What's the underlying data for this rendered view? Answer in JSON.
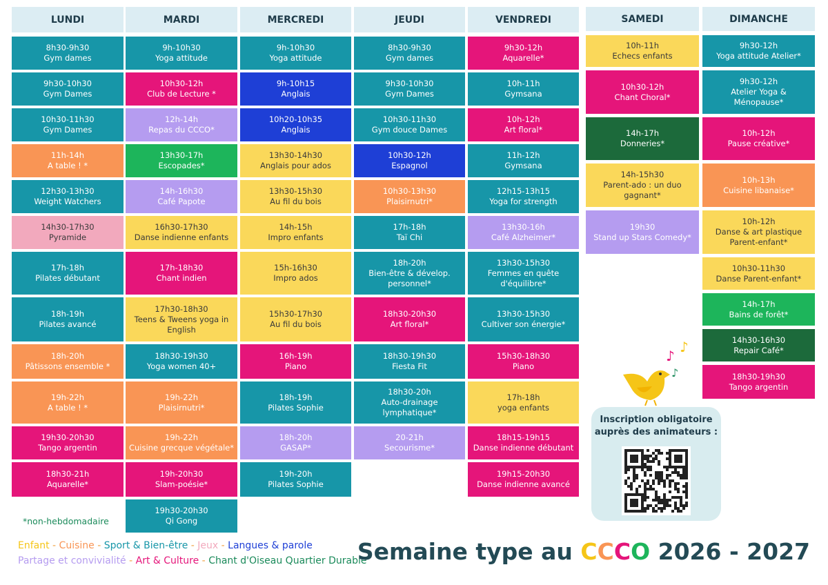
{
  "days": [
    {
      "name": "LUNDI",
      "events": [
        {
          "time": "8h30-9h30",
          "label": "Gym dames",
          "color": "#1796a8"
        },
        {
          "time": "9h30-10h30",
          "label": "Gym Dames",
          "color": "#1796a8"
        },
        {
          "time": "10h30-11h30",
          "label": "Gym Dames",
          "color": "#1796a8"
        },
        {
          "time": "11h-14h",
          "label": "A table ! *",
          "color": "#f99555"
        },
        {
          "time": "12h30-13h30",
          "label": "Weight Watchers",
          "color": "#1796a8"
        },
        {
          "time": "14h30-17h30",
          "label": "Pyramide",
          "color": "#f2a9bd"
        },
        {
          "time": "17h-18h",
          "label": "Pilates débutant",
          "color": "#1796a8"
        },
        {
          "time": "18h-19h",
          "label": "Pilates avancé",
          "color": "#1796a8"
        },
        {
          "time": "18h-20h",
          "label": "Pâtissons ensemble *",
          "color": "#f99555"
        },
        {
          "time": "19h-22h",
          "label": "A table ! *",
          "color": "#f99555"
        },
        {
          "time": "19h30-20h30",
          "label": "Tango argentin",
          "color": "#e5157a"
        },
        {
          "time": "18h30-21h",
          "label": "Aquarelle*",
          "color": "#e5157a"
        }
      ]
    },
    {
      "name": "MARDI",
      "events": [
        {
          "time": "9h-10h30",
          "label": "Yoga attitude",
          "color": "#1796a8"
        },
        {
          "time": "10h30-12h",
          "label": "Club de Lecture *",
          "color": "#e5157a"
        },
        {
          "time": "12h-14h",
          "label": "Repas du CCCO*",
          "color": "#b59cf0"
        },
        {
          "time": "13h30-17h",
          "label": "Escopades*",
          "color": "#1db55b"
        },
        {
          "time": "14h-16h30",
          "label": "Café Papote",
          "color": "#b59cf0"
        },
        {
          "time": "16h30-17h30",
          "label": "Danse indienne enfants",
          "color": "#fad85a"
        },
        {
          "time": "17h-18h30",
          "label": "Chant indien",
          "color": "#e5157a"
        },
        {
          "time": "17h30-18h30",
          "label": "Teens & Tweens yoga in English",
          "color": "#fad85a"
        },
        {
          "time": "18h30-19h30",
          "label": "Yoga women 40+",
          "color": "#1796a8"
        },
        {
          "time": "19h-22h",
          "label": "Plaisirnutri*",
          "color": "#f99555"
        },
        {
          "time": "19h-22h",
          "label": "Cuisine grecque végétale*",
          "color": "#f99555"
        },
        {
          "time": "19h-20h30",
          "label": "Slam-poésie*",
          "color": "#e5157a"
        },
        {
          "time": "19h30-20h30",
          "label": "Qi Gong",
          "color": "#1796a8"
        }
      ]
    },
    {
      "name": "MERCREDI",
      "events": [
        {
          "time": "9h-10h30",
          "label": "Yoga attitude",
          "color": "#1796a8"
        },
        {
          "time": "9h-10h15",
          "label": "Anglais",
          "color": "#1e3fd6"
        },
        {
          "time": "10h20-10h35",
          "label": "Anglais",
          "color": "#1e3fd6"
        },
        {
          "time": "13h30-14h30",
          "label": "Anglais pour ados",
          "color": "#fad85a"
        },
        {
          "time": "13h30-15h30",
          "label": "Au fil du bois",
          "color": "#fad85a"
        },
        {
          "time": "14h-15h",
          "label": "Impro enfants",
          "color": "#fad85a"
        },
        {
          "time": "15h-16h30",
          "label": "Impro ados",
          "color": "#fad85a"
        },
        {
          "time": "15h30-17h30",
          "label": "Au fil du bois",
          "color": "#fad85a"
        },
        {
          "time": "16h-19h",
          "label": "Piano",
          "color": "#e5157a"
        },
        {
          "time": "18h-19h",
          "label": "Pilates Sophie",
          "color": "#1796a8"
        },
        {
          "time": "18h-20h",
          "label": "GASAP*",
          "color": "#b59cf0"
        },
        {
          "time": "19h-20h",
          "label": "Pilates Sophie",
          "color": "#1796a8"
        }
      ]
    },
    {
      "name": "JEUDI",
      "events": [
        {
          "time": "8h30-9h30",
          "label": "Gym dames",
          "color": "#1796a8"
        },
        {
          "time": "9h30-10h30",
          "label": "Gym Dames",
          "color": "#1796a8"
        },
        {
          "time": "10h30-11h30",
          "label": "Gym douce Dames",
          "color": "#1796a8"
        },
        {
          "time": "10h30-12h",
          "label": "Espagnol",
          "color": "#1e3fd6"
        },
        {
          "time": "10h30-13h30",
          "label": "Plaisirnutri*",
          "color": "#f99555"
        },
        {
          "time": "17h-18h",
          "label": "Taï Chi",
          "color": "#1796a8"
        },
        {
          "time": "18h-20h",
          "label": "Bien-être & dévelop. personnel*",
          "color": "#1796a8"
        },
        {
          "time": "18h30-20h30",
          "label": "Art floral*",
          "color": "#e5157a"
        },
        {
          "time": "18h30-19h30",
          "label": "Fiesta Fit",
          "color": "#1796a8"
        },
        {
          "time": "18h30-20h",
          "label": "Auto-drainage lymphatique*",
          "color": "#1796a8"
        },
        {
          "time": "20-21h",
          "label": "Secourisme*",
          "color": "#b59cf0"
        }
      ]
    },
    {
      "name": "VENDREDI",
      "events": [
        {
          "time": "9h30-12h",
          "label": "Aquarelle*",
          "color": "#e5157a"
        },
        {
          "time": "10h-11h",
          "label": "Gymsana",
          "color": "#1796a8"
        },
        {
          "time": "10h-12h",
          "label": "Art floral*",
          "color": "#e5157a"
        },
        {
          "time": "11h-12h",
          "label": "Gymsana",
          "color": "#1796a8"
        },
        {
          "time": "12h15-13h15",
          "label": "Yoga for strength",
          "color": "#1796a8"
        },
        {
          "time": "13h30-16h",
          "label": "Café Alzheimer*",
          "color": "#b59cf0"
        },
        {
          "time": "13h30-15h30",
          "label": "Femmes en quête d'équilibre*",
          "color": "#1796a8"
        },
        {
          "time": "13h30-15h30",
          "label": "Cultiver son énergie*",
          "color": "#1796a8"
        },
        {
          "time": "15h30-18h30",
          "label": "Piano",
          "color": "#e5157a"
        },
        {
          "time": "17h-18h",
          "label": "yoga enfants",
          "color": "#fad85a"
        },
        {
          "time": "18h15-19h15",
          "label": "Danse indienne débutant",
          "color": "#e5157a"
        },
        {
          "time": "19h15-20h30",
          "label": "Danse indienne avancé",
          "color": "#e5157a"
        }
      ]
    },
    {
      "name": "SAMEDI",
      "events": [
        {
          "time": "10h-11h",
          "label": "Echecs enfants",
          "color": "#fad85a"
        },
        {
          "time": "10h30-12h",
          "label": "Chant Choral*",
          "color": "#e5157a"
        },
        {
          "time": "14h-17h",
          "label": "Donneries*",
          "color": "#1c6a3b"
        },
        {
          "time": "14h-15h30",
          "label": "Parent-ado : un duo gagnant*",
          "color": "#fad85a"
        },
        {
          "time": "19h30",
          "label": "Stand up Stars Comedy*",
          "color": "#b59cf0"
        }
      ]
    },
    {
      "name": "DIMANCHE",
      "events": [
        {
          "time": "9h30-12h",
          "label": "Yoga attitude Atelier*",
          "color": "#1796a8"
        },
        {
          "time": "9h30-12h",
          "label": "Atelier Yoga & Ménopause*",
          "color": "#1796a8"
        },
        {
          "time": "10h-12h",
          "label": "Pause créative*",
          "color": "#e5157a"
        },
        {
          "time": "10h-13h",
          "label": "Cuisine libanaise*",
          "color": "#f99555"
        },
        {
          "time": "10h-12h",
          "label": "Danse & art plastique Parent-enfant*",
          "color": "#fad85a"
        },
        {
          "time": "10h30-11h30",
          "label": "Danse Parent-enfant*",
          "color": "#fad85a"
        },
        {
          "time": "14h-17h",
          "label": "Bains de forêt*",
          "color": "#1db55b"
        },
        {
          "time": "14h30-16h30",
          "label": "Repair Café*",
          "color": "#1c6a3b"
        },
        {
          "time": "18h30-19h30",
          "label": "Tango argentin",
          "color": "#e5157a"
        }
      ]
    }
  ],
  "footnote": "*non-hebdomadaire",
  "legend": [
    [
      {
        "text": "Enfant",
        "color": "#f5c518"
      },
      {
        "text": "Cuisine",
        "color": "#f99555"
      },
      {
        "text": "Sport & Bien-être",
        "color": "#1796a8"
      },
      {
        "text": "Jeux",
        "color": "#f2a9bd"
      },
      {
        "text": "Langues & parole",
        "color": "#1e3fd6"
      }
    ],
    [
      {
        "text": "Partage et convivialité",
        "color": "#b59cf0"
      },
      {
        "text": "Art & Culture",
        "color": "#e5157a"
      },
      {
        "text": "Chant d'Oiseau Quartier Durable",
        "color": "#1a8a5a"
      }
    ]
  ],
  "inscription": "Inscription obligatoire auprès des animateurs :",
  "title": {
    "prefix": "Semaine type au",
    "brand": "CCCO",
    "brand_colors": [
      "#f5c518",
      "#f99555",
      "#e5157a",
      "#1db55b"
    ],
    "years": "2026 - 2027"
  }
}
